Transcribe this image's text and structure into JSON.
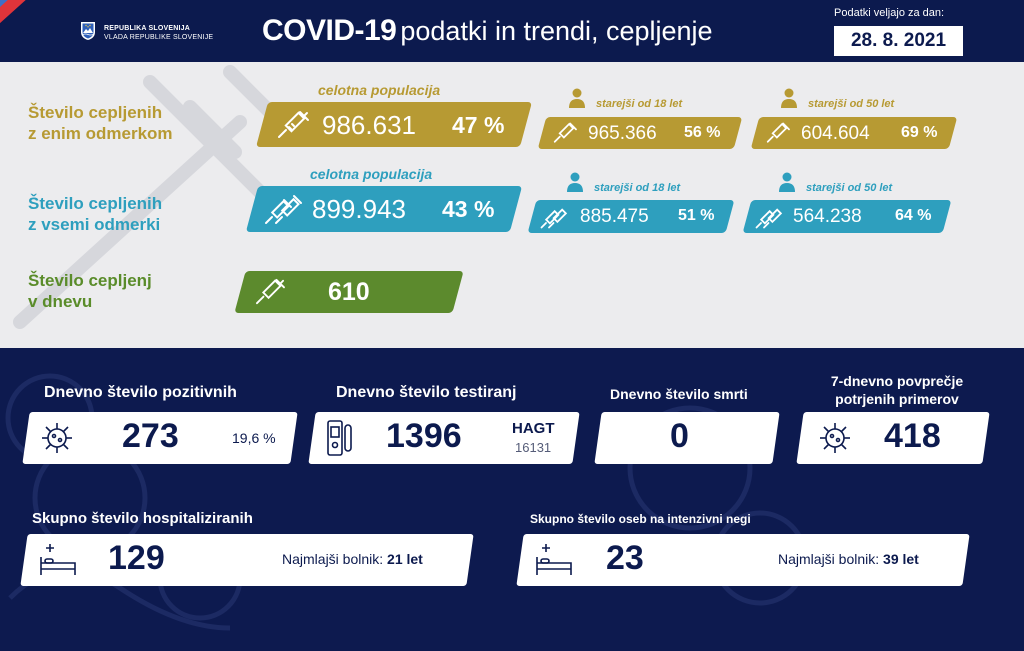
{
  "header": {
    "gov_line1": "REPUBLIKA SLOVENIJA",
    "gov_line2": "VLADA REPUBLIKE SLOVENIJE",
    "title_bold": "COVID-19",
    "title_rest": "podatki in trendi, cepljenje",
    "date_label": "Podatki veljajo za dan:",
    "date_value": "28. 8. 2021"
  },
  "vaccination": {
    "one_dose": {
      "label_line1": "Število cepljenih",
      "label_line2": "z enim odmerkom",
      "total_caption": "celotna populacija",
      "total_value": "986.631",
      "total_pct": "47 %",
      "age18_caption": "starejši od 18 let",
      "age18_value": "965.366",
      "age18_pct": "56 %",
      "age50_caption": "starejši od 50 let",
      "age50_value": "604.604",
      "age50_pct": "69 %",
      "color": "#b79a33"
    },
    "full": {
      "label_line1": "Število cepljenih",
      "label_line2": "z vsemi odmerki",
      "total_caption": "celotna populacija",
      "total_value": "899.943",
      "total_pct": "43 %",
      "age18_caption": "starejši od 18 let",
      "age18_value": "885.475",
      "age18_pct": "51 %",
      "age50_caption": "starejši od 50 let",
      "age50_value": "564.238",
      "age50_pct": "64 %",
      "color": "#2e9fbe"
    },
    "daily": {
      "label_line1": "Število cepljenj",
      "label_line2": "v dnevu",
      "value": "610",
      "color": "#5c8a2d"
    }
  },
  "stats": {
    "positive": {
      "title": "Dnevno število pozitivnih",
      "value": "273",
      "extra": "19,6 %",
      "icon": "virus-icon"
    },
    "tests": {
      "title": "Dnevno število testiranj",
      "value": "1396",
      "extra_label": "HAGT",
      "extra_value": "16131",
      "icon": "test-kit-icon"
    },
    "deaths": {
      "title": "Dnevno število smrti",
      "value": "0"
    },
    "avg7": {
      "title_line1": "7-dnevno povprečje",
      "title_line2": "potrjenih primerov",
      "value": "418",
      "icon": "virus-icon"
    },
    "hospital": {
      "title": "Skupno število hospitaliziranih",
      "value": "129",
      "youngest_label": "Najmlajši bolnik:",
      "youngest_value": "21 let",
      "icon": "hospital-bed-icon"
    },
    "icu": {
      "title": "Skupno število oseb na intenzivni negi",
      "value": "23",
      "youngest_label": "Najmlajši bolnik:",
      "youngest_value": "39 let",
      "icon": "hospital-bed-icon"
    }
  },
  "colors": {
    "navy": "#0d1a4f",
    "gold": "#b79a33",
    "teal": "#2e9fbe",
    "green": "#5c8a2d",
    "panel": "#ececee"
  }
}
